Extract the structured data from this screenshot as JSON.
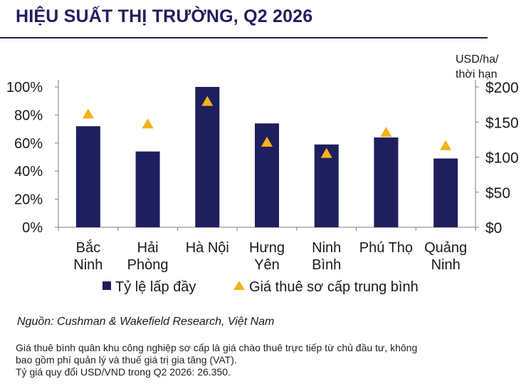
{
  "title": "HIỆU SUẤT THỊ TRƯỜNG, Q2 2026",
  "source": "Nguồn: Cushman & Wakefield Research, Việt Nam",
  "notes": [
    "Giá thuê bình quân khu công nghiệp sơ cấp là giá chào thuê trực tiếp từ chủ đầu tư, không",
    "bao gồm phí quản lý và thuế giá trị gia tăng (VAT).",
    "Tỷ giá quy đổi USD/VND trong Q2 2026: 26.350."
  ],
  "chart_data": {
    "type": "bar",
    "categories": [
      [
        "Bắc",
        "Ninh"
      ],
      [
        "Hải",
        "Phòng"
      ],
      [
        "Hà Nội"
      ],
      [
        "Hưng",
        "Yên"
      ],
      [
        "Ninh",
        "Bình"
      ],
      [
        "Phú Thọ"
      ],
      [
        "Quảng",
        "Ninh"
      ]
    ],
    "series": [
      {
        "name": "Tỷ lệ lấp đầy",
        "type": "bar",
        "axis": "left",
        "color": "#1f1f5e",
        "values": [
          72,
          54,
          100,
          74,
          59,
          64,
          49
        ]
      },
      {
        "name": "Giá thuê sơ cấp trung bình",
        "type": "scatter",
        "marker": "triangle",
        "axis": "right",
        "color": "#f5b21a",
        "values": [
          161,
          147,
          179,
          121,
          105,
          135,
          116
        ]
      }
    ],
    "y_left": {
      "ticks": [
        "0%",
        "20%",
        "40%",
        "60%",
        "80%",
        "100%"
      ],
      "ylim": [
        0,
        100
      ]
    },
    "y_right": {
      "label": [
        "USD/ha/",
        "thời hạn"
      ],
      "ticks": [
        "$0",
        "$50",
        "$100",
        "$150",
        "$200"
      ],
      "ylim": [
        0,
        200
      ]
    },
    "legend_position": "bottom"
  }
}
